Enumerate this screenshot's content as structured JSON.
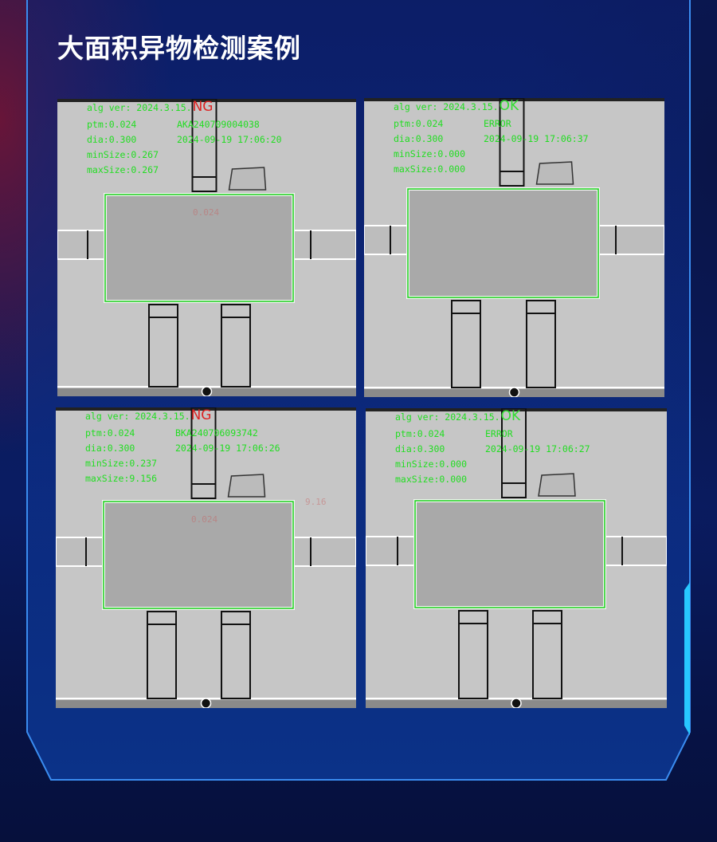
{
  "title": "大面积异物检测案例",
  "colors": {
    "ok_status": "#33dd33",
    "ng_status": "#dd2222",
    "overlay_text": "#22dd22",
    "frame": "#3a8cf0",
    "accent": "#27c8ff"
  },
  "panels": [
    {
      "alg_ver": "alg ver: 2024.3.15.",
      "status": "NG",
      "ptm": "ptm:0.024",
      "code": "AKA240709004038",
      "dia": "dia:0.300",
      "datetime": "2024-09-19 17:06:20",
      "min_size": "minSize:0.267",
      "max_size": "maxSize:0.267",
      "faint_labels": [
        "0.024"
      ]
    },
    {
      "alg_ver": "alg ver: 2024.3.15.",
      "status": "OK",
      "ptm": "ptm:0.024",
      "code": "ERROR",
      "dia": "dia:0.300",
      "datetime": "2024-09-19 17:06:37",
      "min_size": "minSize:0.000",
      "max_size": "maxSize:0.000",
      "faint_labels": []
    },
    {
      "alg_ver": "alg ver: 2024.3.15.",
      "status": "NG",
      "ptm": "ptm:0.024",
      "code": "BKA240706093742",
      "dia": "dia:0.300",
      "datetime": "2024-09-19 17:06:26",
      "min_size": "minSize:0.237",
      "max_size": "maxSize:9.156",
      "faint_labels": [
        "0.024",
        "9.16"
      ]
    },
    {
      "alg_ver": "alg ver: 2024.3.15.",
      "status": "OK",
      "ptm": "ptm:0.024",
      "code": "ERROR",
      "dia": "dia:0.300",
      "datetime": "2024-09-19 17:06:27",
      "min_size": "minSize:0.000",
      "max_size": "maxSize:0.000",
      "faint_labels": []
    }
  ]
}
